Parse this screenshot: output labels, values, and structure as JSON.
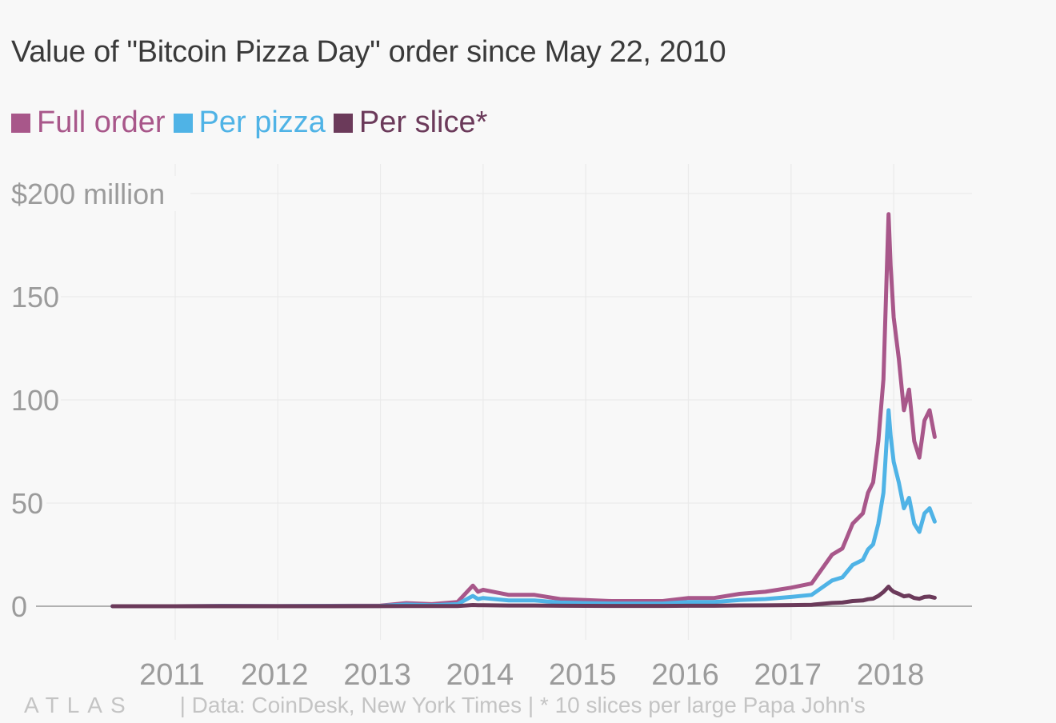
{
  "title": "Value of \"Bitcoin Pizza Day\" order since May 22, 2010",
  "footer": {
    "brand": "ATLAS",
    "source": "| Data: CoinDesk, New York Times | * 10 slices per large Papa John's"
  },
  "chart_data": {
    "type": "line",
    "title": "Value of \"Bitcoin Pizza Day\" order since May 22, 2010",
    "xlabel": "",
    "ylabel": "",
    "xlim": [
      2010.39,
      2018.4
    ],
    "ylim": [
      0,
      200
    ],
    "grid": true,
    "legend_position": "top-left",
    "x_ticks": [
      2011,
      2012,
      2013,
      2014,
      2015,
      2016,
      2017,
      2018
    ],
    "x_tick_labels": [
      "2011",
      "2012",
      "2013",
      "2014",
      "2015",
      "2016",
      "2017",
      "2018"
    ],
    "y_ticks": [
      0,
      50,
      100,
      150,
      200
    ],
    "y_tick_labels": [
      "0",
      "50",
      "100",
      "150",
      "$200 million"
    ],
    "colors": {
      "full_order": "#a8578a",
      "per_pizza": "#4fb3e6",
      "per_slice": "#6b3a5a"
    },
    "x": [
      2010.39,
      2011.0,
      2011.45,
      2012.0,
      2012.5,
      2013.0,
      2013.25,
      2013.5,
      2013.75,
      2013.9,
      2013.95,
      2014.0,
      2014.25,
      2014.5,
      2014.75,
      2015.0,
      2015.25,
      2015.5,
      2015.75,
      2016.0,
      2016.25,
      2016.5,
      2016.75,
      2017.0,
      2017.2,
      2017.4,
      2017.5,
      2017.6,
      2017.7,
      2017.75,
      2017.8,
      2017.85,
      2017.9,
      2017.95,
      2017.97,
      2018.0,
      2018.05,
      2018.1,
      2018.15,
      2018.2,
      2018.25,
      2018.3,
      2018.35,
      2018.4
    ],
    "series": [
      {
        "name": "Full order",
        "values": [
          0,
          0,
          0.2,
          0.1,
          0.2,
          0.3,
          1.5,
          1.0,
          2.0,
          10.0,
          7.0,
          8.0,
          5.5,
          5.5,
          3.5,
          3.0,
          2.5,
          2.5,
          2.5,
          4.0,
          4.0,
          6.0,
          7.0,
          9.0,
          11.0,
          25.0,
          28.0,
          40.0,
          45.0,
          55.0,
          60.0,
          80.0,
          110.0,
          190.0,
          165.0,
          140.0,
          120.0,
          95.0,
          105.0,
          80.0,
          72.0,
          90.0,
          95.0,
          82.0
        ]
      },
      {
        "name": "Per pizza",
        "values": [
          0,
          0,
          0.1,
          0.05,
          0.1,
          0.15,
          0.8,
          0.5,
          1.0,
          5.0,
          3.5,
          4.0,
          2.8,
          2.8,
          1.8,
          1.5,
          1.3,
          1.3,
          1.3,
          2.0,
          2.0,
          3.0,
          3.5,
          4.5,
          5.5,
          12.5,
          14.0,
          20.0,
          22.5,
          27.5,
          30.0,
          40.0,
          55.0,
          95.0,
          82.5,
          70.0,
          60.0,
          47.5,
          52.5,
          40.0,
          36.0,
          45.0,
          47.5,
          41.0
        ]
      },
      {
        "name": "Per slice*",
        "values": [
          0,
          0,
          0.01,
          0.01,
          0.01,
          0.02,
          0.1,
          0.06,
          0.12,
          0.6,
          0.45,
          0.5,
          0.35,
          0.35,
          0.22,
          0.19,
          0.16,
          0.16,
          0.16,
          0.25,
          0.25,
          0.37,
          0.44,
          0.56,
          0.69,
          1.6,
          1.8,
          2.5,
          2.8,
          3.4,
          3.7,
          5.0,
          6.9,
          9.5,
          8.2,
          7.0,
          6.0,
          4.8,
          5.2,
          4.0,
          3.6,
          4.5,
          4.7,
          4.1
        ]
      }
    ]
  }
}
